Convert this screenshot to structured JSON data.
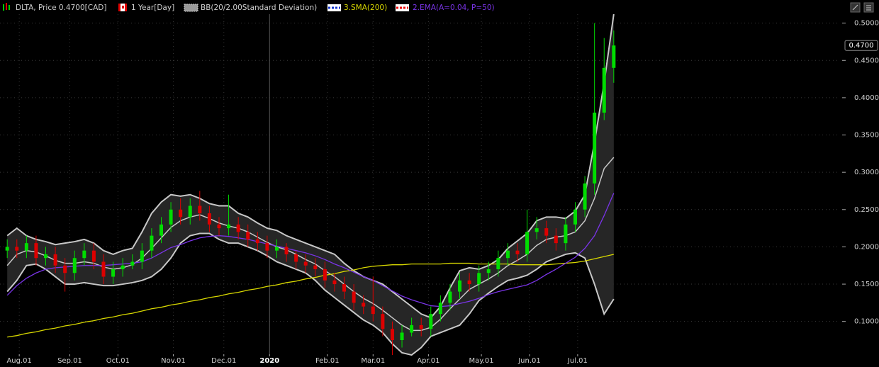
{
  "chart_data": {
    "type": "candlestick",
    "title": "DLTA, Price 0.4700[CAD]",
    "period": "1 Year[Day]",
    "x": [
      2,
      6,
      10,
      14,
      18,
      22,
      26,
      30,
      34,
      38,
      42,
      46,
      50,
      54,
      58,
      62,
      66,
      70,
      74,
      78,
      82,
      86,
      90,
      94,
      98,
      102,
      106,
      110,
      114,
      118,
      122,
      126,
      130,
      134,
      138,
      142,
      146,
      150,
      154,
      158,
      162,
      166,
      170,
      174,
      178,
      182,
      186,
      190,
      194,
      198,
      202,
      206,
      210,
      214,
      218,
      222,
      226,
      230,
      234,
      238,
      242,
      246,
      250,
      254
    ],
    "open": [
      0.195,
      0.2,
      0.195,
      0.205,
      0.185,
      0.19,
      0.175,
      0.165,
      0.185,
      0.195,
      0.18,
      0.16,
      0.17,
      0.175,
      0.18,
      0.195,
      0.215,
      0.23,
      0.25,
      0.24,
      0.255,
      0.245,
      0.23,
      0.225,
      0.23,
      0.22,
      0.21,
      0.205,
      0.195,
      0.2,
      0.19,
      0.18,
      0.175,
      0.17,
      0.155,
      0.15,
      0.14,
      0.125,
      0.12,
      0.11,
      0.09,
      0.075,
      0.085,
      0.095,
      0.09,
      0.11,
      0.125,
      0.14,
      0.155,
      0.15,
      0.165,
      0.17,
      0.185,
      0.195,
      0.19,
      0.22,
      0.225,
      0.215,
      0.205,
      0.23,
      0.25,
      0.285,
      0.38,
      0.44
    ],
    "high": [
      0.21,
      0.21,
      0.215,
      0.215,
      0.2,
      0.2,
      0.185,
      0.195,
      0.205,
      0.205,
      0.19,
      0.18,
      0.185,
      0.19,
      0.205,
      0.225,
      0.24,
      0.26,
      0.265,
      0.265,
      0.275,
      0.255,
      0.24,
      0.27,
      0.24,
      0.23,
      0.22,
      0.215,
      0.21,
      0.205,
      0.195,
      0.19,
      0.185,
      0.18,
      0.165,
      0.16,
      0.15,
      0.135,
      0.16,
      0.12,
      0.1,
      0.095,
      0.105,
      0.105,
      0.12,
      0.135,
      0.15,
      0.165,
      0.165,
      0.175,
      0.18,
      0.195,
      0.205,
      0.205,
      0.25,
      0.24,
      0.235,
      0.225,
      0.24,
      0.26,
      0.295,
      0.5,
      0.48,
      0.49
    ],
    "low": [
      0.185,
      0.185,
      0.185,
      0.175,
      0.175,
      0.165,
      0.14,
      0.155,
      0.175,
      0.17,
      0.15,
      0.15,
      0.16,
      0.17,
      0.17,
      0.185,
      0.205,
      0.22,
      0.23,
      0.23,
      0.235,
      0.22,
      0.215,
      0.215,
      0.21,
      0.2,
      0.195,
      0.185,
      0.185,
      0.18,
      0.17,
      0.165,
      0.16,
      0.145,
      0.14,
      0.13,
      0.115,
      0.11,
      0.1,
      0.08,
      0.055,
      0.065,
      0.08,
      0.08,
      0.08,
      0.1,
      0.115,
      0.13,
      0.14,
      0.14,
      0.155,
      0.16,
      0.175,
      0.18,
      0.18,
      0.21,
      0.205,
      0.195,
      0.195,
      0.22,
      0.24,
      0.27,
      0.37,
      0.42
    ],
    "close": [
      0.2,
      0.195,
      0.205,
      0.185,
      0.19,
      0.175,
      0.165,
      0.185,
      0.195,
      0.18,
      0.16,
      0.17,
      0.175,
      0.18,
      0.195,
      0.215,
      0.23,
      0.25,
      0.24,
      0.255,
      0.245,
      0.23,
      0.225,
      0.23,
      0.22,
      0.21,
      0.205,
      0.195,
      0.2,
      0.19,
      0.18,
      0.175,
      0.17,
      0.155,
      0.15,
      0.14,
      0.125,
      0.12,
      0.11,
      0.09,
      0.075,
      0.085,
      0.095,
      0.09,
      0.11,
      0.125,
      0.14,
      0.155,
      0.15,
      0.165,
      0.17,
      0.185,
      0.195,
      0.19,
      0.22,
      0.225,
      0.215,
      0.205,
      0.23,
      0.25,
      0.285,
      0.38,
      0.44,
      0.47
    ],
    "up_color": "#00dd00",
    "down_color": "#dd0000",
    "bands": {
      "name": "BB(20/2.00Standard Deviation)",
      "color": "#c8c8c8",
      "fill": "#262626",
      "upper": [
        0.215,
        0.225,
        0.215,
        0.21,
        0.207,
        0.203,
        0.205,
        0.207,
        0.21,
        0.205,
        0.195,
        0.19,
        0.195,
        0.198,
        0.22,
        0.245,
        0.26,
        0.27,
        0.268,
        0.27,
        0.265,
        0.258,
        0.255,
        0.255,
        0.245,
        0.24,
        0.232,
        0.225,
        0.222,
        0.215,
        0.21,
        0.205,
        0.2,
        0.195,
        0.19,
        0.178,
        0.168,
        0.16,
        0.155,
        0.15,
        0.14,
        0.13,
        0.12,
        0.11,
        0.105,
        0.12,
        0.145,
        0.168,
        0.172,
        0.17,
        0.175,
        0.183,
        0.198,
        0.208,
        0.218,
        0.235,
        0.24,
        0.24,
        0.238,
        0.248,
        0.27,
        0.34,
        0.42,
        0.512
      ],
      "middle": [
        0.175,
        0.19,
        0.195,
        0.193,
        0.188,
        0.182,
        0.178,
        0.178,
        0.18,
        0.178,
        0.173,
        0.17,
        0.172,
        0.176,
        0.185,
        0.198,
        0.212,
        0.226,
        0.235,
        0.24,
        0.243,
        0.238,
        0.232,
        0.228,
        0.225,
        0.22,
        0.213,
        0.206,
        0.2,
        0.196,
        0.19,
        0.183,
        0.177,
        0.168,
        0.16,
        0.15,
        0.14,
        0.131,
        0.124,
        0.115,
        0.105,
        0.095,
        0.088,
        0.088,
        0.092,
        0.103,
        0.117,
        0.13,
        0.143,
        0.15,
        0.157,
        0.165,
        0.175,
        0.182,
        0.19,
        0.202,
        0.21,
        0.213,
        0.215,
        0.22,
        0.235,
        0.265,
        0.305,
        0.32
      ],
      "lower": [
        0.14,
        0.155,
        0.175,
        0.177,
        0.17,
        0.16,
        0.15,
        0.15,
        0.152,
        0.15,
        0.148,
        0.148,
        0.15,
        0.152,
        0.155,
        0.16,
        0.17,
        0.185,
        0.205,
        0.215,
        0.218,
        0.218,
        0.21,
        0.205,
        0.205,
        0.2,
        0.195,
        0.188,
        0.18,
        0.175,
        0.17,
        0.165,
        0.155,
        0.142,
        0.132,
        0.122,
        0.112,
        0.102,
        0.095,
        0.085,
        0.07,
        0.058,
        0.055,
        0.065,
        0.08,
        0.085,
        0.09,
        0.095,
        0.11,
        0.128,
        0.138,
        0.147,
        0.155,
        0.158,
        0.162,
        0.17,
        0.18,
        0.185,
        0.19,
        0.192,
        0.185,
        0.15,
        0.11,
        0.13
      ]
    },
    "series": [
      {
        "name": "3.SMA(200)",
        "color": "#d8d800",
        "values": [
          0.079,
          0.081,
          0.084,
          0.086,
          0.089,
          0.091,
          0.094,
          0.096,
          0.099,
          0.101,
          0.104,
          0.106,
          0.109,
          0.111,
          0.114,
          0.117,
          0.119,
          0.122,
          0.124,
          0.127,
          0.129,
          0.132,
          0.134,
          0.137,
          0.139,
          0.142,
          0.144,
          0.147,
          0.149,
          0.152,
          0.154,
          0.157,
          0.159,
          0.162,
          0.164,
          0.167,
          0.169,
          0.172,
          0.174,
          0.175,
          0.176,
          0.176,
          0.177,
          0.177,
          0.177,
          0.177,
          0.178,
          0.178,
          0.178,
          0.177,
          0.177,
          0.177,
          0.177,
          0.176,
          0.176,
          0.176,
          0.176,
          0.177,
          0.178,
          0.179,
          0.181,
          0.184,
          0.187,
          0.19
        ]
      },
      {
        "name": "2.EMA(A=0.04, P=50)",
        "color": "#7a34e8",
        "values": [
          0.135,
          0.148,
          0.158,
          0.165,
          0.17,
          0.172,
          0.173,
          0.174,
          0.175,
          0.175,
          0.175,
          0.176,
          0.177,
          0.178,
          0.18,
          0.185,
          0.192,
          0.199,
          0.203,
          0.208,
          0.212,
          0.214,
          0.215,
          0.214,
          0.212,
          0.21,
          0.207,
          0.204,
          0.201,
          0.198,
          0.195,
          0.192,
          0.188,
          0.183,
          0.177,
          0.172,
          0.166,
          0.16,
          0.155,
          0.148,
          0.141,
          0.134,
          0.129,
          0.125,
          0.121,
          0.12,
          0.121,
          0.124,
          0.127,
          0.131,
          0.136,
          0.14,
          0.143,
          0.146,
          0.149,
          0.155,
          0.163,
          0.17,
          0.178,
          0.186,
          0.198,
          0.215,
          0.242,
          0.272
        ]
      }
    ],
    "last_price": {
      "value": 0.47,
      "label": "0.4700"
    },
    "xlim": [
      -1,
      348
    ],
    "xticks": [
      {
        "value": 7,
        "label": "Aug.01"
      },
      {
        "value": 28,
        "label": "Sep.01"
      },
      {
        "value": 48,
        "label": "Oct.01"
      },
      {
        "value": 71,
        "label": "Nov.01"
      },
      {
        "value": 92,
        "label": "Dec.01"
      },
      {
        "value": 111,
        "label": "2020"
      },
      {
        "value": 135,
        "label": "Feb.01"
      },
      {
        "value": 154,
        "label": "Mar.01"
      },
      {
        "value": 177,
        "label": "Apr.01"
      },
      {
        "value": 199,
        "label": "May.01"
      },
      {
        "value": 219,
        "label": "Jun.01"
      },
      {
        "value": 239,
        "label": "Jul.01"
      }
    ],
    "ylim": [
      0.056,
      0.512
    ],
    "yticks": [
      {
        "value": 0.1,
        "label": "0.1000"
      },
      {
        "value": 0.15,
        "label": "0.1500"
      },
      {
        "value": 0.2,
        "label": "0.2000"
      },
      {
        "value": 0.25,
        "label": "0.2500"
      },
      {
        "value": 0.3,
        "label": "0.3000"
      },
      {
        "value": 0.35,
        "label": "0.3500"
      },
      {
        "value": 0.4,
        "label": "0.4000"
      },
      {
        "value": 0.45,
        "label": "0.4500"
      },
      {
        "value": 0.5,
        "label": "0.5000"
      }
    ],
    "grid": true
  }
}
